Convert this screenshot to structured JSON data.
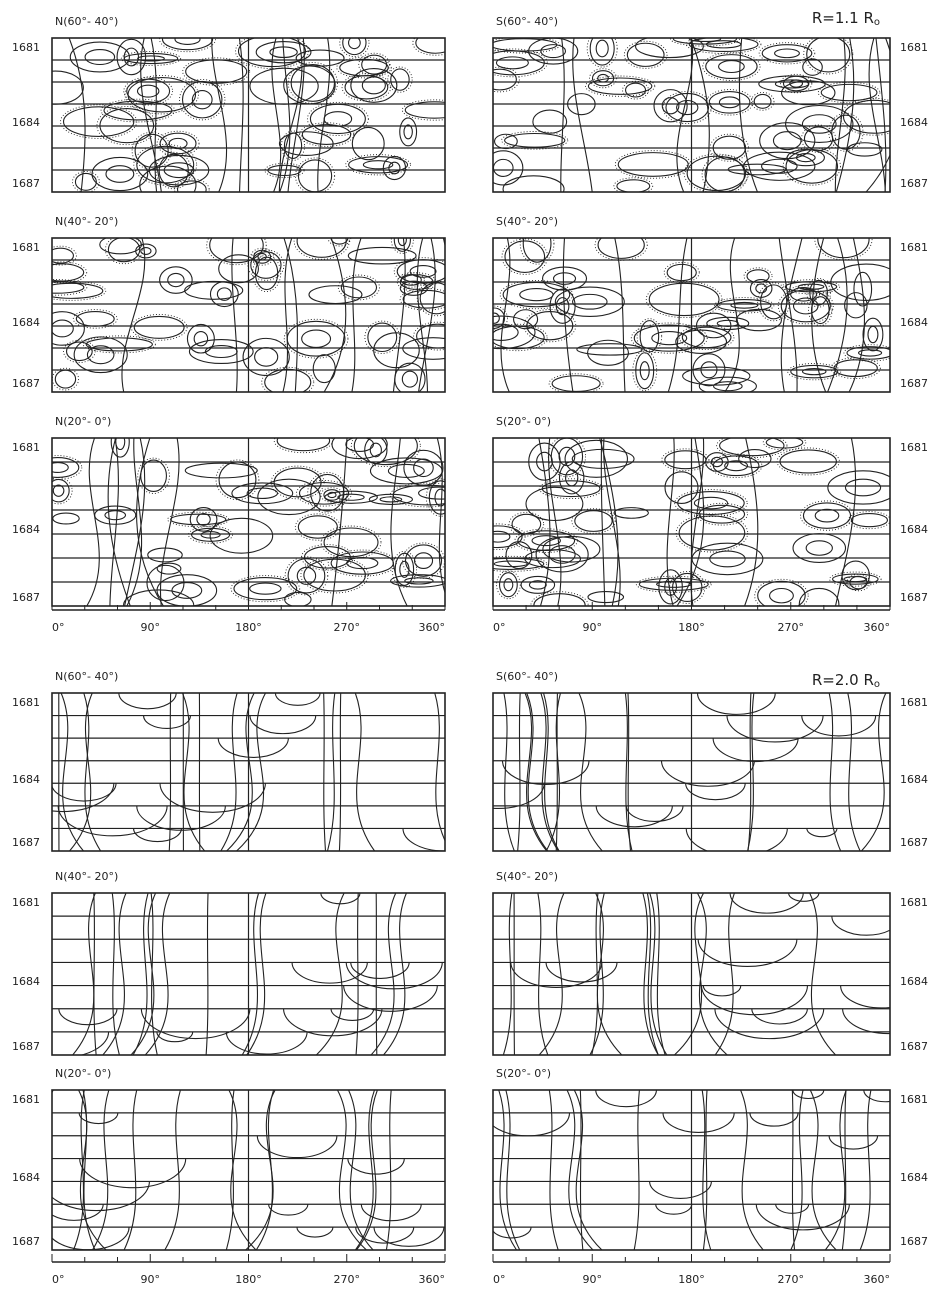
{
  "sections": [
    {
      "radius_label": {
        "text": "R=1.1 R",
        "sub": "o"
      },
      "panels": [
        {
          "title": "N(60°- 40°)"
        },
        {
          "title": "S(60°- 40°)"
        },
        {
          "title": "N(40°- 20°)"
        },
        {
          "title": "S(40°- 20°)"
        },
        {
          "title": "N(20°- 0°)"
        },
        {
          "title": "S(20°- 0°)"
        }
      ]
    },
    {
      "radius_label": {
        "text": "R=2.0 R",
        "sub": "o"
      },
      "panels": [
        {
          "title": "N(60°- 40°)"
        },
        {
          "title": "S(60°- 40°)"
        },
        {
          "title": "N(40°- 20°)"
        },
        {
          "title": "S(40°- 20°)"
        },
        {
          "title": "N(20°- 0°)"
        },
        {
          "title": "S(20°- 0°)"
        }
      ]
    }
  ],
  "year_labels": [
    "1681",
    "1684",
    "1687"
  ],
  "x_axis_labels": [
    "0°",
    "90°",
    "180°",
    "270°",
    "360°"
  ]
}
